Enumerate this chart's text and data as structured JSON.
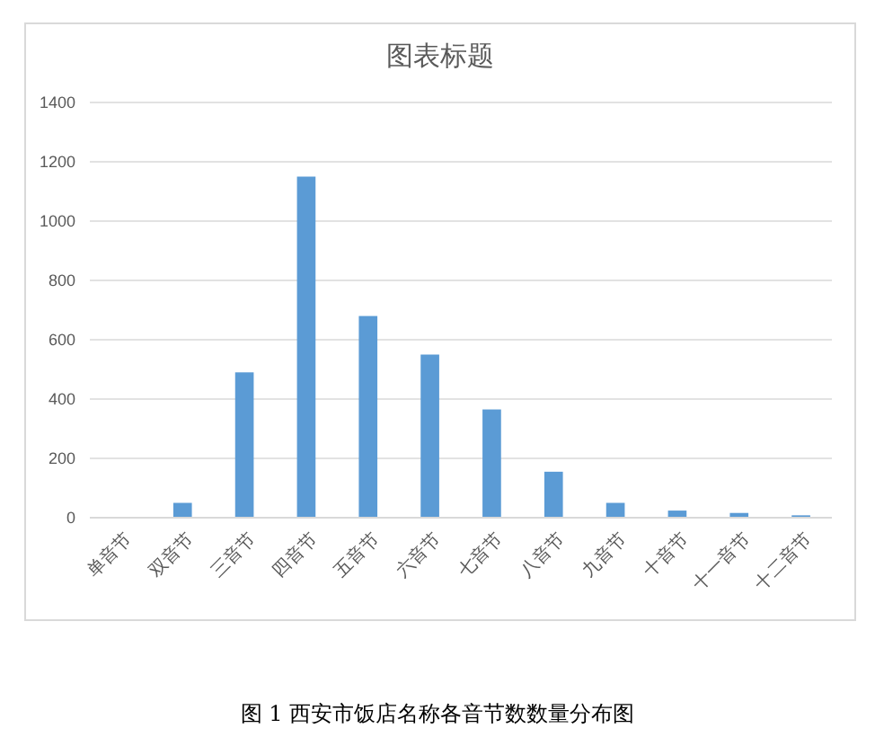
{
  "chart_data": {
    "type": "bar",
    "title": "图表标题",
    "categories": [
      "单音节",
      "双音节",
      "三音节",
      "四音节",
      "五音节",
      "六音节",
      "七音节",
      "八音节",
      "九音节",
      "十音节",
      "十一音节",
      "十二音节"
    ],
    "values": [
      0,
      50,
      490,
      1150,
      680,
      550,
      365,
      155,
      50,
      24,
      16,
      8
    ],
    "color": "#5b9bd5",
    "ylim": [
      0,
      1400
    ],
    "yticks": [
      0,
      200,
      400,
      600,
      800,
      1000,
      1200,
      1400
    ],
    "grid": "y",
    "annotations": [
      "图 1 西安市饭店名称各音节数数量分布图"
    ]
  }
}
